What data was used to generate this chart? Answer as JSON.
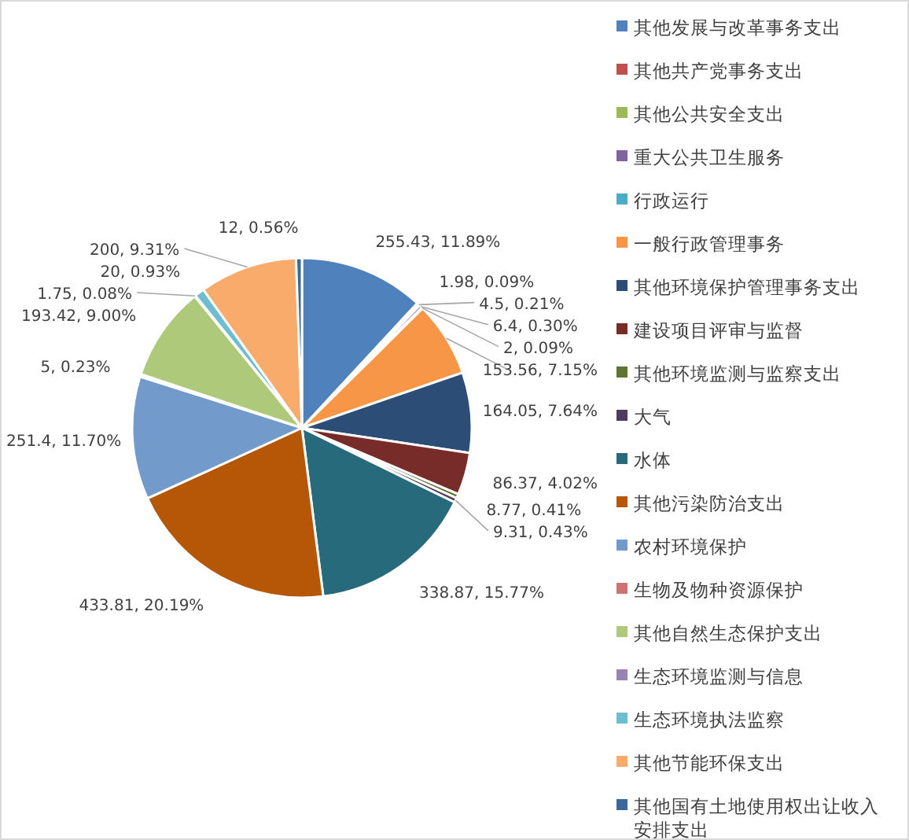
{
  "chart_data": {
    "type": "pie",
    "categories": [
      "其他发展与改革事务支出",
      "其他共产党事务支出",
      "其他公共安全支出",
      "重大公共卫生服务",
      "行政运行",
      "一般行政管理事务",
      "其他环境保护管理事务支出",
      "建设项目评审与监督",
      "其他环境监测与监察支出",
      "大气",
      "水体",
      "其他污染防治支出",
      "农村环境保护",
      "生物及物种资源保护",
      "其他自然生态保护支出",
      "生态环境监测与信息",
      "生态环境执法监察",
      "其他节能环保支出",
      "其他国有土地使用权出让收入安排支出"
    ],
    "values": [
      255.43,
      1.98,
      4.5,
      6.4,
      2,
      153.56,
      164.05,
      86.37,
      8.77,
      9.31,
      338.87,
      433.81,
      251.4,
      5,
      193.42,
      1.75,
      20,
      200,
      12
    ],
    "value_labels": [
      "255.43, 11.89%",
      "1.98, 0.09%",
      "4.5, 0.21%",
      "6.4, 0.30%",
      "2, 0.09%",
      "153.56, 7.15%",
      "164.05, 7.64%",
      "86.37, 4.02%",
      "8.77, 0.41%",
      "9.31, 0.43%",
      "338.87, 15.77%",
      "433.81, 20.19%",
      "251.4, 11.70%",
      "5, 0.23%",
      "193.42, 9.00%",
      "1.75, 0.08%",
      "20, 0.93%",
      "200, 9.31%",
      "12, 0.56%"
    ],
    "colors": [
      "#4f81bd",
      "#c0504d",
      "#9bbb59",
      "#8064a2",
      "#4bacc6",
      "#f79646",
      "#2c4d75",
      "#772c2a",
      "#5f7530",
      "#4d3b62",
      "#276a7c",
      "#b65708",
      "#729aca",
      "#cd7371",
      "#afc97a",
      "#9983b5",
      "#6fbdd1",
      "#f9ab6b",
      "#3a679c"
    ],
    "legend": "right"
  }
}
